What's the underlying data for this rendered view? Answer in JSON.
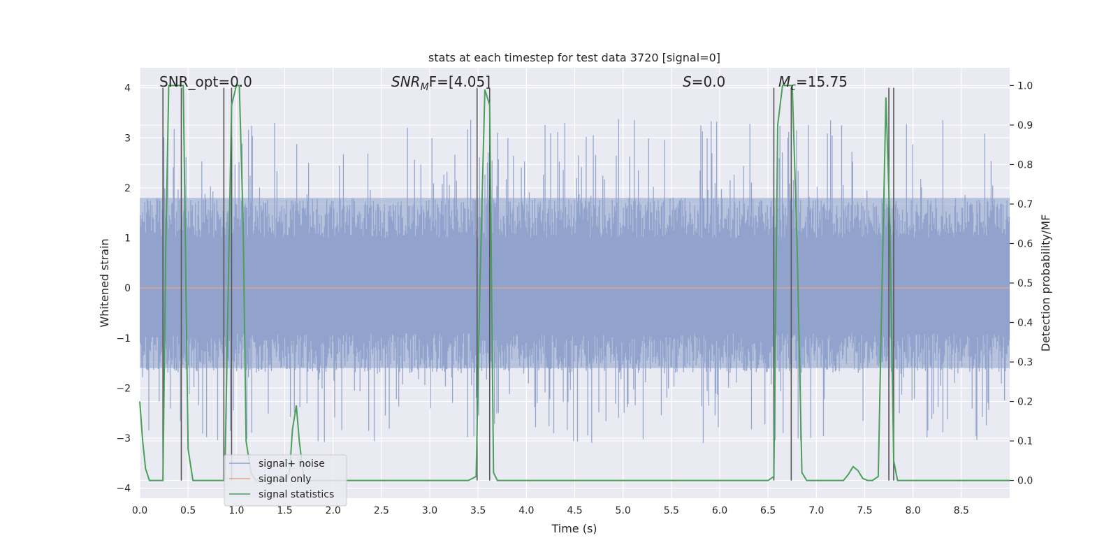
{
  "chart_data": {
    "type": "line",
    "title": "stats at each timestep for test data 3720 [signal=0]",
    "xlabel": "Time (s)",
    "ylabel": "Whitened strain",
    "ylabel_right": "Detection probability/MF",
    "xlim": [
      0,
      9.0
    ],
    "ylim": [
      -4.2,
      4.4
    ],
    "ylim_right": [
      -0.045,
      1.045
    ],
    "x_ticks": [
      0.0,
      0.5,
      1.0,
      1.5,
      2.0,
      2.5,
      3.0,
      3.5,
      4.0,
      4.5,
      5.0,
      5.5,
      6.0,
      6.5,
      7.0,
      7.5,
      8.0,
      8.5
    ],
    "x_tick_labels": [
      "0.0",
      "0.5",
      "1.0",
      "1.5",
      "2.0",
      "2.5",
      "3.0",
      "3.5",
      "4.0",
      "4.5",
      "5.0",
      "5.5",
      "6.0",
      "6.5",
      "7.0",
      "7.5",
      "8.0",
      "8.5"
    ],
    "y_ticks": [
      4,
      3,
      2,
      1,
      0,
      -1,
      -2,
      -3,
      -4
    ],
    "y_tick_labels": [
      "4",
      "3",
      "2",
      "1",
      "0",
      "−1",
      "−2",
      "−3",
      "−4"
    ],
    "y_right_ticks": [
      1.0,
      0.9,
      0.8,
      0.7,
      0.6,
      0.5,
      0.4,
      0.3,
      0.2,
      0.1,
      0.0
    ],
    "y_right_tick_labels": [
      "1.0",
      "0.9",
      "0.8",
      "0.7",
      "0.6",
      "0.5",
      "0.4",
      "0.3",
      "0.2",
      "0.1",
      "0.0"
    ],
    "annotations": {
      "snr_opt": "SNR_opt=0.0",
      "snr_mf_main": "SNR",
      "snr_mf_sub": "M",
      "snr_mf_rest": "F=[4.05]",
      "s_main": "S",
      "s_rest": "=0.0",
      "mc_main": "M",
      "mc_sub": "c",
      "mc_rest": "=15.75"
    },
    "legend": {
      "position": "lower-left",
      "entries": [
        {
          "label": "signal+ noise",
          "color": "#8da0cb"
        },
        {
          "label": "signal only",
          "color": "#e5a584"
        },
        {
          "label": "signal statistics",
          "color": "#4aa05a"
        }
      ]
    },
    "colors": {
      "noise": "#8da0cb",
      "signal_only": "#e5a584",
      "statistics": "#4aa05a",
      "vlines": "#555555",
      "axes_bg": "#eaeaf2",
      "grid": "#ffffff"
    },
    "noise_series": {
      "description_name": "signal+ noise",
      "n_points": 1100,
      "typical_range": [
        -1.6,
        1.8
      ],
      "extreme_range": [
        -3.7,
        4.0
      ]
    },
    "signal_only": {
      "name": "signal only",
      "value": 0.0
    },
    "statistics_series": {
      "name": "signal statistics",
      "x": [
        0.0,
        0.03,
        0.06,
        0.1,
        0.15,
        0.2,
        0.24,
        0.27,
        0.3,
        0.35,
        0.4,
        0.45,
        0.5,
        0.55,
        0.6,
        0.7,
        0.8,
        0.88,
        0.92,
        0.95,
        1.0,
        1.03,
        1.07,
        1.1,
        1.15,
        1.2,
        1.3,
        1.4,
        1.5,
        1.55,
        1.58,
        1.62,
        1.65,
        1.7,
        1.8,
        2.0,
        2.5,
        3.0,
        3.4,
        3.48,
        3.52,
        3.57,
        3.62,
        3.66,
        3.7,
        3.8,
        4.0,
        5.0,
        6.0,
        6.5,
        6.56,
        6.6,
        6.65,
        6.7,
        6.75,
        6.8,
        6.85,
        6.9,
        7.0,
        7.1,
        7.2,
        7.28,
        7.33,
        7.38,
        7.43,
        7.48,
        7.53,
        7.58,
        7.64,
        7.68,
        7.72,
        7.76,
        7.8,
        7.84,
        7.88,
        7.92,
        7.96,
        8.0,
        8.5,
        9.0
      ],
      "y": [
        0.2,
        0.1,
        0.03,
        0.0,
        0.0,
        0.0,
        0.0,
        0.6,
        1.0,
        1.0,
        1.0,
        1.0,
        0.08,
        0.0,
        0.0,
        0.0,
        0.0,
        0.0,
        0.55,
        0.95,
        1.0,
        1.0,
        0.65,
        0.1,
        0.02,
        0.0,
        0.0,
        0.0,
        0.0,
        0.02,
        0.13,
        0.19,
        0.1,
        0.0,
        0.0,
        0.0,
        0.0,
        0.0,
        0.0,
        0.01,
        0.5,
        0.99,
        0.95,
        0.02,
        0.0,
        0.0,
        0.0,
        0.0,
        0.0,
        0.0,
        0.01,
        0.9,
        1.0,
        1.0,
        1.0,
        0.6,
        0.02,
        0.0,
        0.0,
        0.0,
        0.0,
        0.0,
        0.015,
        0.035,
        0.025,
        0.005,
        0.0,
        0.0,
        0.01,
        0.5,
        0.97,
        0.65,
        0.05,
        0.0,
        0.0,
        0.0,
        0.0,
        0.0,
        0.0,
        0.0
      ]
    },
    "vertical_lines_x": [
      0.24,
      0.43,
      0.87,
      0.95,
      3.49,
      3.62,
      6.56,
      6.74,
      7.75,
      7.8
    ]
  }
}
